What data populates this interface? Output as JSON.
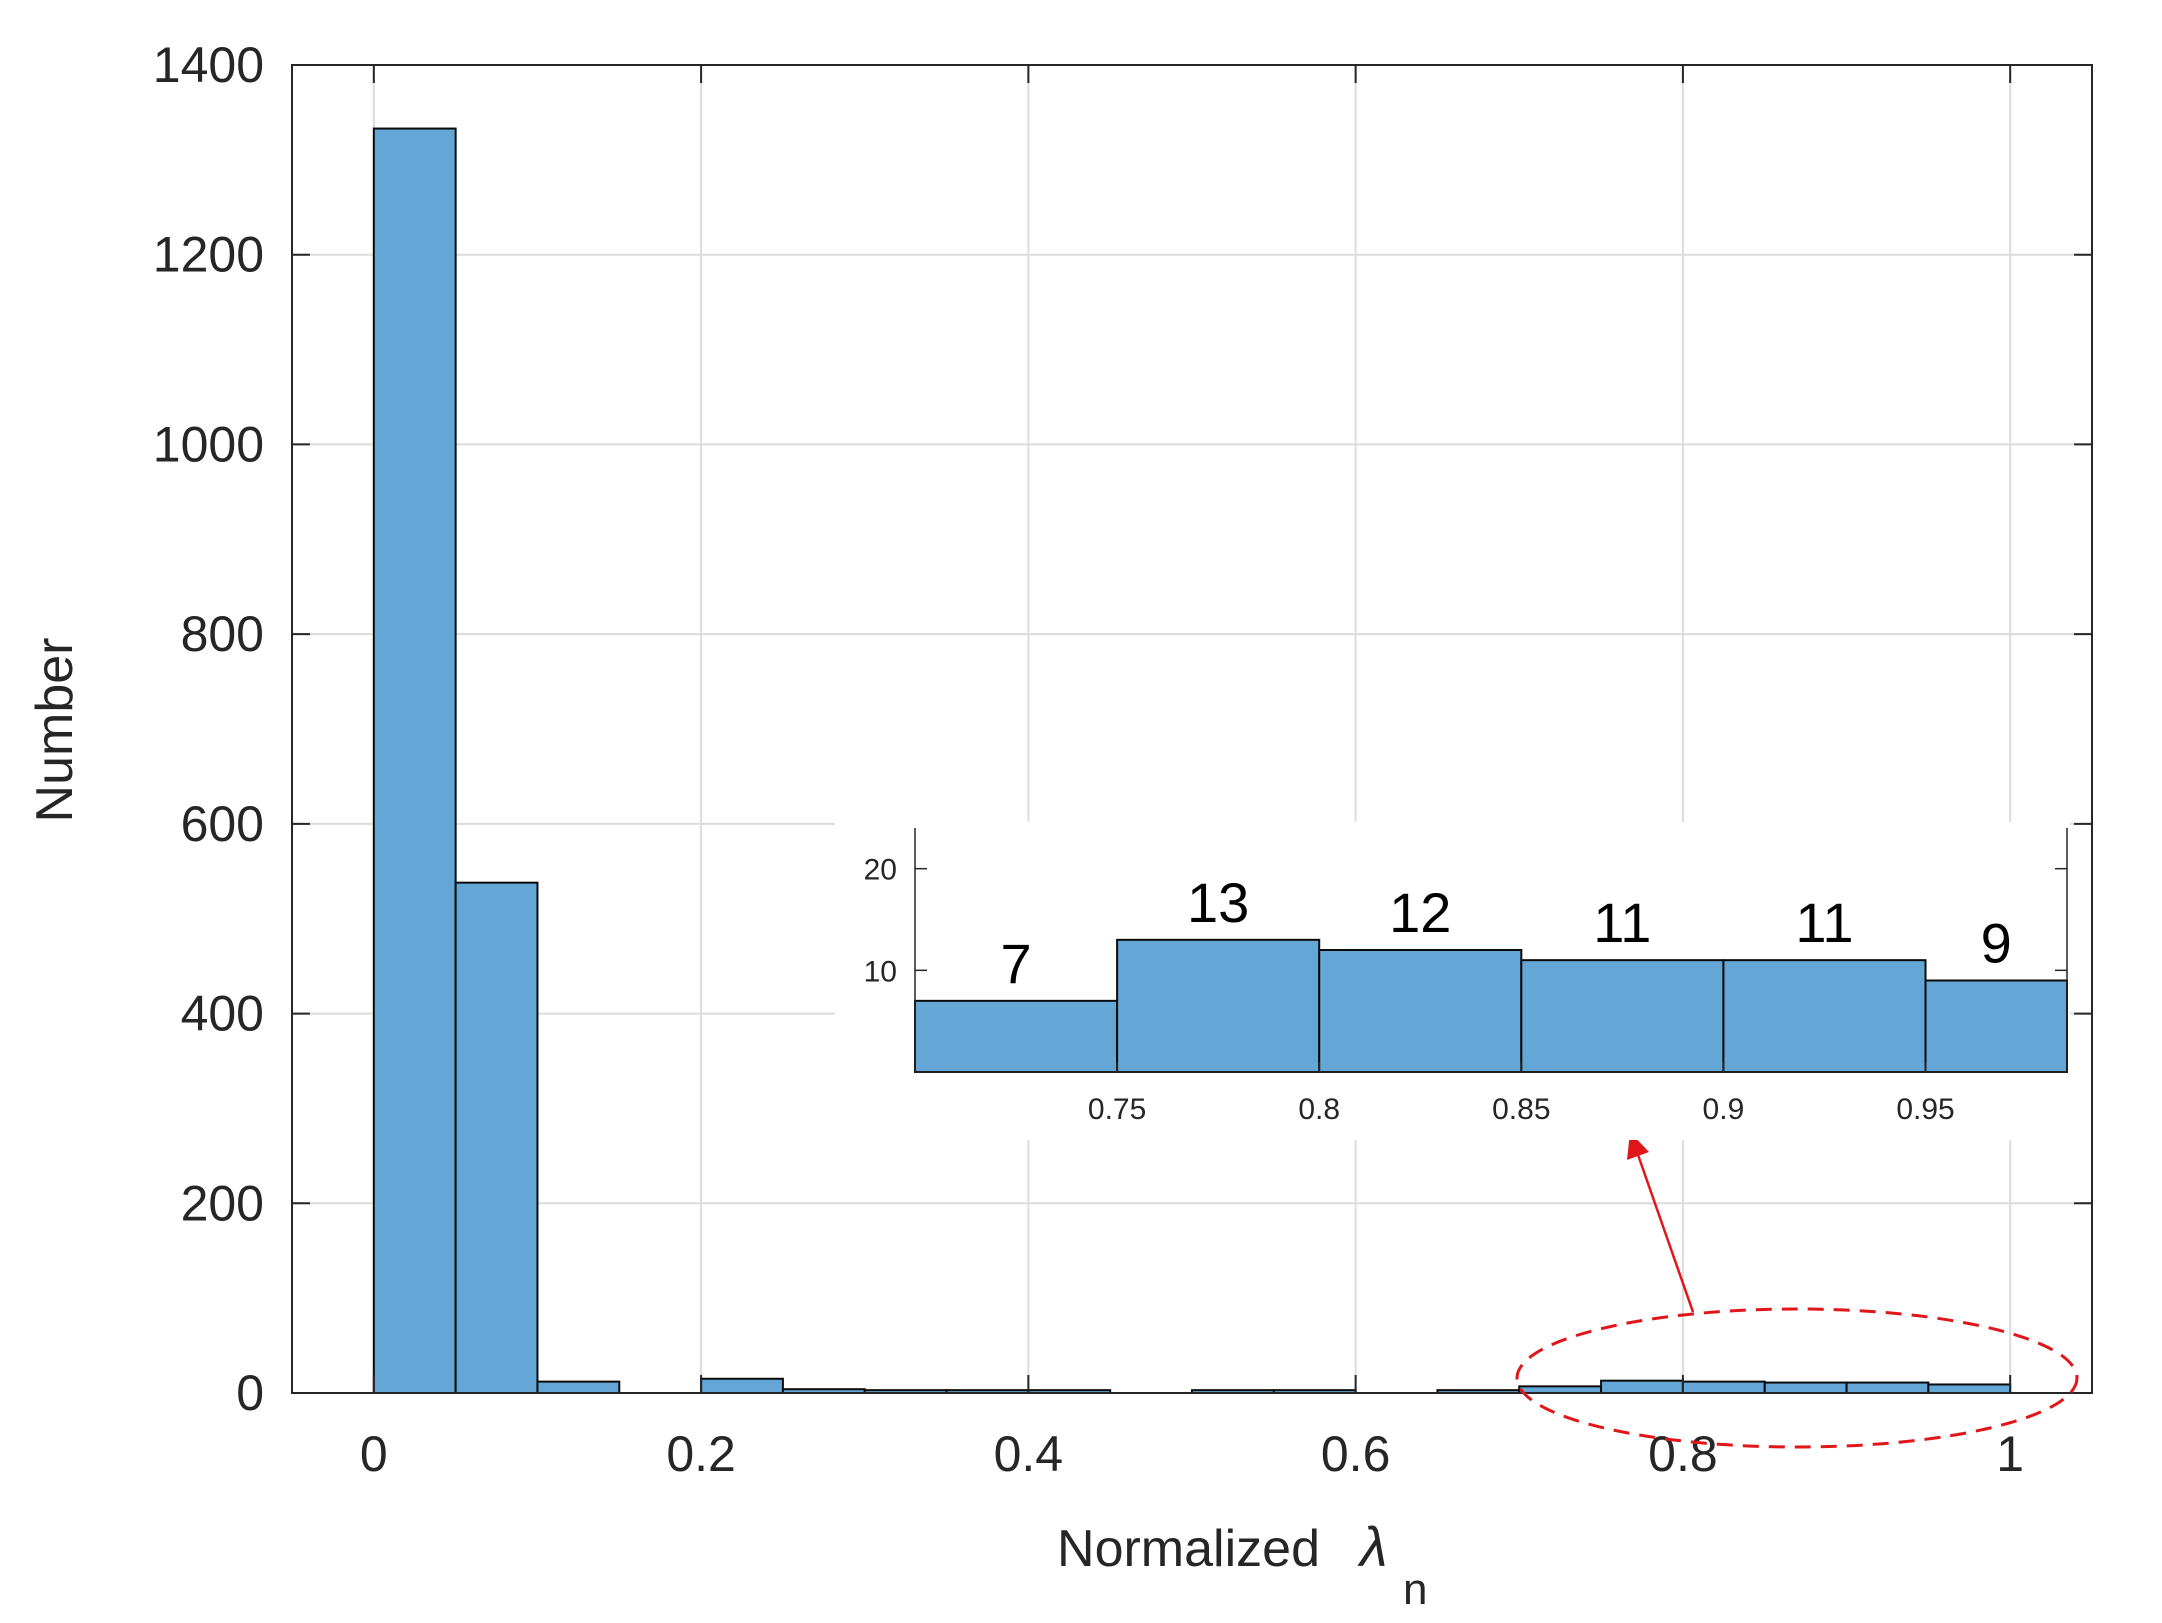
{
  "chart_data": [
    {
      "type": "bar",
      "xlabel": "Normalized",
      "xlabel_symbol": "λ",
      "xlabel_subscript": "n",
      "ylabel": "Number",
      "xlim": [
        -0.05,
        1.05
      ],
      "ylim": [
        0,
        1400
      ],
      "xticks": [
        0,
        0.2,
        0.4,
        0.6,
        0.8,
        1
      ],
      "xtick_labels": [
        "0",
        "0.2",
        "0.4",
        "0.6",
        "0.8",
        "1"
      ],
      "yticks": [
        0,
        200,
        400,
        600,
        800,
        1000,
        1200,
        1400
      ],
      "ytick_labels": [
        "0",
        "200",
        "400",
        "600",
        "800",
        "1000",
        "1200",
        "1400"
      ],
      "grid": true,
      "bin_edges": [
        0,
        0.05,
        0.1,
        0.15,
        0.2,
        0.25,
        0.3,
        0.35,
        0.4,
        0.45,
        0.5,
        0.55,
        0.6,
        0.65,
        0.7,
        0.75,
        0.8,
        0.85,
        0.9,
        0.95,
        1.0
      ],
      "values": [
        1333,
        538,
        12,
        0,
        15,
        4,
        3,
        3,
        3,
        0,
        3,
        3,
        0,
        3,
        7,
        13,
        12,
        11,
        11,
        9
      ],
      "bar_color": "#64a7d6",
      "highlight_color": "#e0171a"
    },
    {
      "type": "bar",
      "inset": true,
      "xlim": [
        0.7,
        0.985
      ],
      "ylim": [
        0,
        24
      ],
      "xticks": [
        0.75,
        0.8,
        0.85,
        0.9,
        0.95
      ],
      "xtick_labels": [
        "0.75",
        "0.8",
        "0.85",
        "0.9",
        "0.95"
      ],
      "yticks": [
        10,
        20
      ],
      "ytick_labels": [
        "10",
        "20"
      ],
      "bin_edges": [
        0.7,
        0.75,
        0.8,
        0.85,
        0.9,
        0.95,
        0.985
      ],
      "values": [
        7,
        13,
        12,
        11,
        11,
        9
      ],
      "data_labels": [
        "7",
        "13",
        "12",
        "11",
        "11",
        "9"
      ]
    }
  ]
}
